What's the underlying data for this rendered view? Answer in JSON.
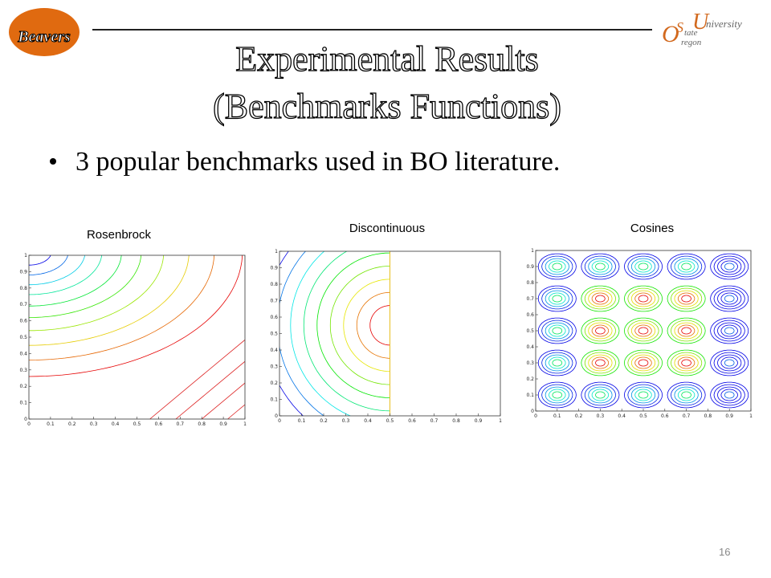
{
  "logos": {
    "left": "Beavers",
    "right": {
      "o": "O",
      "s": "S",
      "u": "U",
      "state": "tate",
      "oregon": "regon",
      "university": "niversity"
    }
  },
  "title": {
    "line1": "Experimental Results",
    "line2": "(Benchmarks Functions)"
  },
  "bullets": [
    "3 popular benchmarks used in BO literature."
  ],
  "plots": [
    {
      "label": "Rosenbrock",
      "xticks": [
        0,
        0.1,
        0.2,
        0.3,
        0.4,
        0.5,
        0.6,
        0.7,
        0.8,
        0.9,
        1
      ],
      "yticks": [
        0,
        0.1,
        0.2,
        0.3,
        0.4,
        0.5,
        0.6,
        0.7,
        0.8,
        0.9,
        1
      ]
    },
    {
      "label": "Discontinuous",
      "xticks": [
        0,
        0.1,
        0.2,
        0.3,
        0.4,
        0.5,
        0.6,
        0.7,
        0.8,
        0.9,
        1
      ],
      "yticks": [
        0,
        0.1,
        0.2,
        0.3,
        0.4,
        0.5,
        0.6,
        0.7,
        0.8,
        0.9,
        1
      ]
    },
    {
      "label": "Cosines",
      "xticks": [
        0,
        0.1,
        0.2,
        0.3,
        0.4,
        0.5,
        0.6,
        0.7,
        0.8,
        0.9,
        1
      ],
      "yticks": [
        0,
        0.1,
        0.2,
        0.3,
        0.4,
        0.5,
        0.6,
        0.7,
        0.8,
        0.9,
        1
      ]
    }
  ],
  "page_number": "16"
}
